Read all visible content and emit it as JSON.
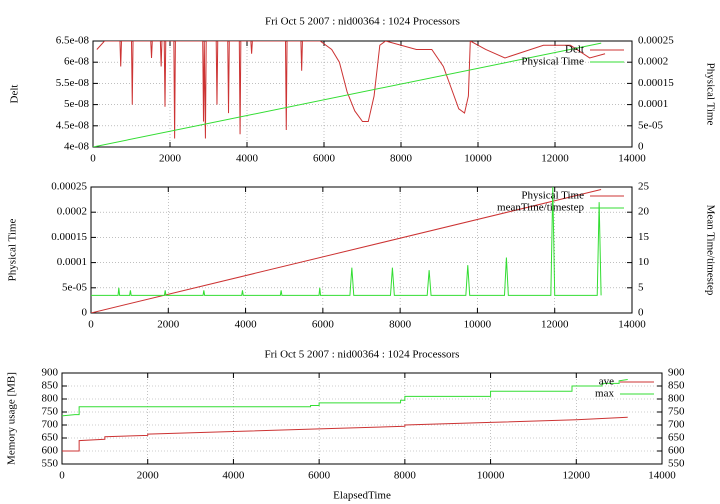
{
  "chart_data": [
    {
      "type": "line",
      "title": "Fri Oct 5 2007 : nid00364 : 1024 Processors",
      "ylabel": "Delt",
      "y2label": "Physical Time",
      "xlim": [
        0,
        14000
      ],
      "xticks": [
        0,
        2000,
        4000,
        6000,
        8000,
        10000,
        12000,
        14000
      ],
      "ylim": [
        4e-08,
        6.5e-08
      ],
      "yticks": [
        {
          "value": 4e-08,
          "label": "4e-08"
        },
        {
          "value": 4.5e-08,
          "label": "4.5e-08"
        },
        {
          "value": 5e-08,
          "label": "5e-08"
        },
        {
          "value": 5.5e-08,
          "label": "5.5e-08"
        },
        {
          "value": 6e-08,
          "label": "6e-08"
        },
        {
          "value": 6.5e-08,
          "label": "6.5e-08"
        }
      ],
      "y2lim": [
        0,
        0.00025
      ],
      "y2ticks": [
        0,
        {
          "value": 5e-05,
          "label": "5e-05"
        },
        0.0001,
        0.00015,
        0.0002,
        0.00025
      ],
      "grid": true,
      "legend": "upper right",
      "series": [
        {
          "name": "Delt",
          "color": "#cc3333",
          "x": [
            100,
            300,
            500,
            700,
            720,
            740,
            1000,
            1020,
            1040,
            1500,
            1520,
            1540,
            1750,
            1770,
            1790,
            1850,
            1870,
            1890,
            2100,
            2120,
            2140,
            2850,
            2870,
            2890,
            2920,
            2940,
            3200,
            3220,
            3240,
            3500,
            3520,
            3540,
            3800,
            3820,
            3840,
            4100,
            4120,
            4140,
            5000,
            5020,
            5040,
            5400,
            5420,
            5440,
            5900,
            6200,
            6400,
            6600,
            6800,
            7000,
            7150,
            7300,
            7450,
            7600,
            8400,
            8800,
            9100,
            9300,
            9500,
            9650,
            9750,
            9800,
            10200,
            10700,
            11700,
            12400,
            12900,
            13300
          ],
          "values": [
            6.3e-08,
            6.5e-08,
            6.5e-08,
            6.5e-08,
            5.9e-08,
            6.5e-08,
            6.5e-08,
            5e-08,
            6.5e-08,
            6.5e-08,
            6.1e-08,
            6.5e-08,
            6.5e-08,
            5.9e-08,
            6.5e-08,
            6.5e-08,
            4.95e-08,
            6.5e-08,
            6.5e-08,
            4.2e-08,
            6.5e-08,
            6.5e-08,
            4.6e-08,
            6.5e-08,
            4.2e-08,
            6.5e-08,
            6.5e-08,
            5e-08,
            6.5e-08,
            6.5e-08,
            4.8e-08,
            6.5e-08,
            6.5e-08,
            4.3e-08,
            6.5e-08,
            6.5e-08,
            6.2e-08,
            6.5e-08,
            6.5e-08,
            4.4e-08,
            6.5e-08,
            6.5e-08,
            5.8e-08,
            6.5e-08,
            6.5e-08,
            6.3e-08,
            6e-08,
            5.3e-08,
            4.85e-08,
            4.6e-08,
            4.6e-08,
            5.2e-08,
            6.4e-08,
            6.5e-08,
            6.3e-08,
            6.3e-08,
            5.9e-08,
            5.4e-08,
            4.9e-08,
            4.8e-08,
            5.2e-08,
            6.5e-08,
            6.3e-08,
            6.1e-08,
            6.4e-08,
            6.4e-08,
            6.1e-08,
            6.2e-08
          ]
        },
        {
          "name": "Physical Time",
          "color": "#33dd33",
          "axis": "y2",
          "x": [
            0,
            13200
          ],
          "values": [
            0,
            0.000245
          ]
        }
      ]
    },
    {
      "type": "line",
      "ylabel": "Physical Time",
      "y2label": "Mean Time/timestep",
      "xlim": [
        0,
        14000
      ],
      "xticks": [
        0,
        2000,
        4000,
        6000,
        8000,
        10000,
        12000,
        14000
      ],
      "ylim": [
        0,
        0.00025
      ],
      "yticks": [
        0,
        {
          "value": 5e-05,
          "label": "5e-05"
        },
        0.0001,
        0.00015,
        0.0002,
        0.00025
      ],
      "y2lim": [
        0,
        25
      ],
      "y2ticks": [
        0,
        5,
        10,
        15,
        20,
        25
      ],
      "grid": true,
      "legend": "upper right",
      "series": [
        {
          "name": "Physical Time",
          "color": "#cc3333",
          "x": [
            0,
            13200
          ],
          "values": [
            0,
            0.000245
          ]
        },
        {
          "name": "meanTime/timestep",
          "color": "#33dd33",
          "axis": "y2",
          "x": [
            0,
            700,
            720,
            740,
            1000,
            1020,
            1040,
            1900,
            1920,
            1940,
            2900,
            2920,
            2940,
            3900,
            3920,
            3940,
            4900,
            4920,
            4940,
            5900,
            5920,
            5940,
            6700,
            6750,
            6800,
            7750,
            7800,
            7850,
            8700,
            8750,
            8800,
            9700,
            9750,
            9800,
            10700,
            10750,
            10800,
            11900,
            11950,
            12000,
            13100,
            13150,
            13200
          ],
          "values": [
            3.5,
            3.5,
            5,
            3.5,
            3.5,
            4.5,
            3.5,
            3.5,
            4.5,
            3.5,
            3.5,
            4.5,
            3.5,
            3.5,
            4.5,
            3.5,
            3.5,
            4.5,
            3.5,
            3.5,
            5,
            3.5,
            3.5,
            9,
            3.5,
            3.5,
            9,
            3.5,
            3.5,
            8.5,
            3.5,
            3.5,
            9.5,
            3.5,
            3.5,
            11,
            3.5,
            3.5,
            25,
            3.5,
            3.5,
            22,
            3.5
          ]
        }
      ]
    },
    {
      "type": "line",
      "title": "Fri Oct 5 2007 : nid00364 : 1024 Processors",
      "ylabel": "Memory usage [MB]",
      "xlabel": "ElapsedTime",
      "xlim": [
        0,
        14000
      ],
      "xticks": [
        0,
        2000,
        4000,
        6000,
        8000,
        10000,
        12000,
        14000
      ],
      "ylim": [
        550,
        900
      ],
      "yticks": [
        550,
        600,
        650,
        700,
        750,
        800,
        850,
        900
      ],
      "y2lim": [
        550,
        900
      ],
      "y2ticks": [
        550,
        600,
        650,
        700,
        750,
        800,
        850,
        900
      ],
      "grid": true,
      "legend": "upper right",
      "series": [
        {
          "name": "ave",
          "color": "#cc3333",
          "x": [
            0,
            400,
            400,
            1000,
            1000,
            2000,
            2000,
            4000,
            6000,
            8000,
            8000,
            10000,
            12000,
            13200
          ],
          "values": [
            600,
            600,
            640,
            645,
            655,
            660,
            665,
            675,
            685,
            695,
            700,
            710,
            720,
            730
          ]
        },
        {
          "name": "max",
          "color": "#33dd33",
          "x": [
            0,
            300,
            400,
            400,
            5800,
            5800,
            6000,
            6000,
            7900,
            7900,
            8000,
            8000,
            10000,
            10000,
            11900,
            11900,
            12600,
            12600,
            13000,
            13000,
            13200
          ],
          "values": [
            735,
            740,
            740,
            770,
            770,
            775,
            775,
            785,
            785,
            795,
            795,
            810,
            810,
            830,
            830,
            850,
            850,
            860,
            860,
            870,
            875
          ]
        }
      ]
    }
  ]
}
